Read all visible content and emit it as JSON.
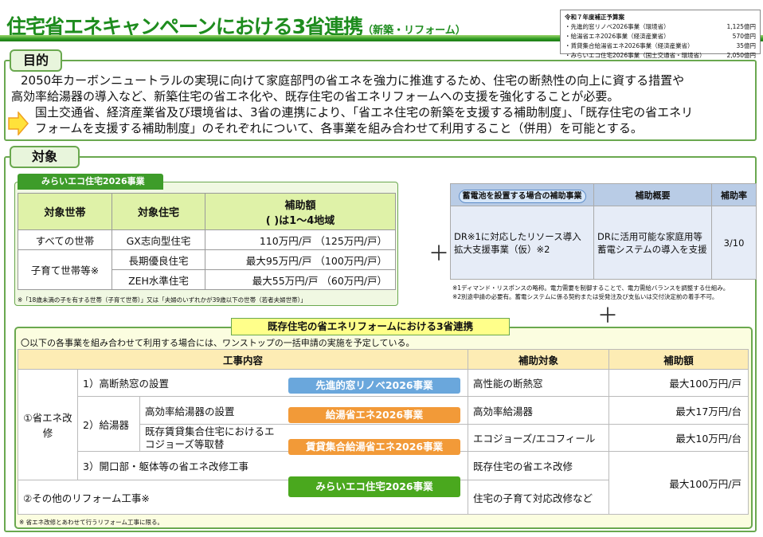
{
  "header": {
    "title": "住宅省エネキャンペーンにおける3省連携",
    "subtitle": "（新築・リフォーム）"
  },
  "budget": {
    "heading": "令和７年度補正予算案",
    "items": [
      {
        "label": "・先進的窓リノベ2026事業（環境省）",
        "amount": "1,125億円"
      },
      {
        "label": "・給湯省エネ2026事業（経済産業省）",
        "amount": "570億円"
      },
      {
        "label": "・賃貸集合給湯省エネ2026事業（経済産業省）",
        "amount": "35億円"
      },
      {
        "label": "・みらいエコ住宅2026事業（国土交通省・環境省）",
        "amount": "2,050億円"
      }
    ]
  },
  "purpose": {
    "tab": "目的",
    "line1": "2050年カーボンニュートラルの実現に向けて家庭部門の省エネを強力に推進するため、住宅の断熱性の向上に資する措置や",
    "line2": "高効率給湯器の導入など、新築住宅の省エネ化や、既存住宅の省エネリフォームへの支援を強化することが必要。",
    "line3": "国土交通省、経済産業省及び環境省は、3省の連携により、「省エネ住宅の新築を支援する補助制度」、「既存住宅の省エネリ",
    "line4": "フォームを支援する補助制度」のそれぞれについて、各事業を組み合わせて利用すること（併用）を可能とする。"
  },
  "target": {
    "tab": "対象",
    "mirai": {
      "label": "みらいエコ住宅2026事業",
      "headers": [
        "対象世帯",
        "対象住宅",
        "補助額",
        "( )は1～4地域"
      ],
      "rows": [
        {
          "household": "すべての世帯",
          "house": "GX志向型住宅",
          "amount": "110万円/戸",
          "amount_cold": "（125万円/戸）"
        },
        {
          "household": "子育て世帯等※",
          "house": "長期優良住宅",
          "amount": "最大95万円/戸",
          "amount_cold": "（100万円/戸）"
        },
        {
          "house": "ZEH水準住宅",
          "amount": "最大55万円/戸",
          "amount_cold": "（60万円/戸）"
        }
      ],
      "note": "※「18歳未満の子を有する世帯（子育て世帯）」又は「夫婦のいずれかが39歳以下の世帯（若者夫婦世帯）」"
    },
    "plus": "＋",
    "battery": {
      "headers": [
        "蓄電池を設置する場合の補助事業",
        "補助概要",
        "補助率"
      ],
      "program": "DR※1に対応したリソース導入拡大支援事業（仮）※2",
      "summary": "DRに活用可能な家庭用等蓄電システムの導入を支援",
      "rate": "3/10",
      "notes": [
        "※1ディマンド・リスポンスの略称。電力需要を制御することで、電力需給バランスを調整する仕組み。",
        "※2別途申請の必要有。蓄電システムに係る契約または受発注及び支払いは交付決定前の着手不可。"
      ]
    },
    "reform": {
      "title": "既存住宅の省エネリフォームにおける3省連携",
      "lead": "〇以下の各事業を組み合わせて利用する場合には、ワンストップの一括申請の実施を予定している。",
      "headers": [
        "工事内容",
        "補助対象",
        "補助額"
      ],
      "cat1": "①省エネ改修",
      "cat2": "②その他のリフォーム工事※",
      "window": "1）高断熱窓の設置",
      "heater": "2）給湯器",
      "heater_a": "高効率給湯器の設置",
      "heater_b": "既存賃貸集合住宅におけるエコジョーズ等取替",
      "opening": "3）開口部・躯体等の省エネ改修工事",
      "programs": {
        "window": "先進的窓リノベ2026事業",
        "heater_a": "給湯省エネ2026事業",
        "heater_b": "賃貸集合給湯省エネ2026事業",
        "mirai": "みらいエコ住宅2026事業"
      },
      "targets": [
        "高性能の断熱窓",
        "高効率給湯器",
        "エコジョーズ/エコフィール",
        "既存住宅の省エネ改修",
        "住宅の子育て対応改修など"
      ],
      "amounts": [
        "最大100万円/戸",
        "最大17万円/台",
        "最大10万円/台",
        "最大100万円/戸"
      ],
      "note": "※ 省エネ改修とあわせて行うリフォーム工事に限る。"
    },
    "colors": {
      "green": "#1e8c1e",
      "blue_pill": "#6aa7dc",
      "orange_pill": "#f29a38",
      "green_pill": "#4aa81e"
    }
  }
}
